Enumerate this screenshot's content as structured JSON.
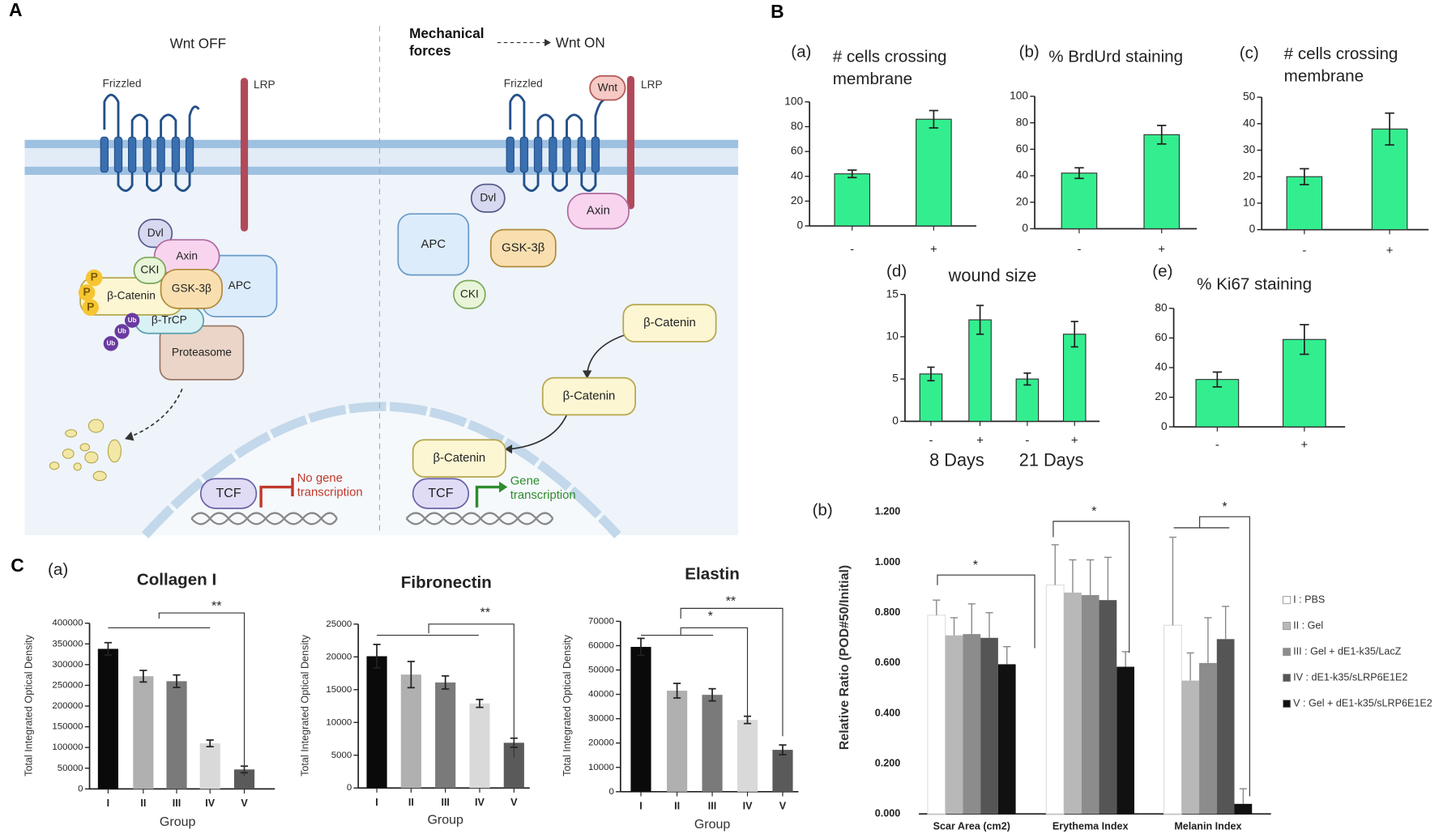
{
  "panel_labels": [
    "A",
    "B",
    "C"
  ],
  "diagram": {
    "nodes": [
      "Wnt OFF",
      "Mechanical",
      "forces",
      "Wnt ON",
      "Frizzled",
      "LRP",
      "Frizzled",
      "Wnt",
      "LRP",
      "Dvl",
      "APC",
      "Axin",
      "Proteasome",
      "β-TrCP",
      "β-Catenin",
      "CKI",
      "GSK-3β",
      "P",
      "P",
      "P",
      "Ub",
      "Ub",
      "Ub",
      "Dvl",
      "Axin",
      "APC",
      "GSK-3β",
      "CKI",
      "β-Catenin",
      "β-Catenin",
      "β-Catenin",
      "TCF",
      "No gene",
      "transcription",
      "TCF",
      "Gene",
      "transcription"
    ]
  },
  "chart_data": [
    {
      "type": "bar",
      "label": "(a)",
      "title": [
        "# cells crossing",
        "membrane"
      ],
      "categories": [
        "-",
        "+"
      ],
      "values": [
        42,
        86
      ],
      "errors": [
        3,
        7
      ],
      "color": "#33ee8f",
      "ylim": [
        0,
        100
      ],
      "yticks": [
        0,
        20,
        40,
        60,
        80,
        100
      ]
    },
    {
      "type": "bar",
      "label": "(b)",
      "title": [
        "% BrdUrd staining"
      ],
      "categories": [
        "-",
        "+"
      ],
      "values": [
        42,
        71
      ],
      "errors": [
        4,
        7
      ],
      "color": "#33ee8f",
      "ylim": [
        0,
        100
      ],
      "yticks": [
        0,
        20,
        40,
        60,
        80,
        100
      ]
    },
    {
      "type": "bar",
      "label": "(c)",
      "title": [
        "# cells crossing",
        "membrane"
      ],
      "categories": [
        "-",
        "+"
      ],
      "values": [
        20,
        38
      ],
      "errors": [
        3,
        6
      ],
      "color": "#33ee8f",
      "ylim": [
        0,
        50
      ],
      "yticks": [
        0,
        10,
        20,
        30,
        40,
        50
      ]
    },
    {
      "type": "bar",
      "label": "(d)",
      "title": [
        "wound size"
      ],
      "categories": [
        "-",
        "+",
        "-",
        "+"
      ],
      "groups": [
        "8 Days",
        "21 Days"
      ],
      "values": [
        5.6,
        12,
        5,
        10.3
      ],
      "errors": [
        0.8,
        1.7,
        0.7,
        1.5
      ],
      "color": "#33ee8f",
      "ylim": [
        0,
        15
      ],
      "yticks": [
        0,
        5,
        10,
        15
      ]
    },
    {
      "type": "bar",
      "label": "(e)",
      "title": [
        "% Ki67 staining"
      ],
      "categories": [
        "-",
        "+"
      ],
      "values": [
        32,
        59
      ],
      "errors": [
        5,
        10
      ],
      "color": "#33ee8f",
      "ylim": [
        0,
        80
      ],
      "yticks": [
        0,
        20,
        40,
        60,
        80
      ]
    },
    {
      "type": "bar",
      "label": "(a)",
      "title": [
        "Collagen I"
      ],
      "ylabel": "Total Integrated Optical Density",
      "xlabel": "Group",
      "categories": [
        "I",
        "II",
        "III",
        "IV",
        "V"
      ],
      "values": [
        338000,
        272000,
        260000,
        110000,
        47000
      ],
      "errors": [
        15000,
        14000,
        15000,
        8000,
        8000
      ],
      "colors": [
        "#0a0a0a",
        "#b0b0b0",
        "#7a7a7a",
        "#d9d9d9",
        "#5a5a5a"
      ],
      "ylim": [
        0,
        400000
      ],
      "yticks": [
        0,
        50000,
        100000,
        150000,
        200000,
        250000,
        300000,
        350000,
        400000
      ],
      "annotations": [
        "**"
      ]
    },
    {
      "type": "bar",
      "title": [
        "Fibronectin"
      ],
      "ylabel": "Total Integrated Optical Density",
      "xlabel": "Group",
      "categories": [
        "I",
        "II",
        "III",
        "IV",
        "V"
      ],
      "values": [
        20100,
        17300,
        16100,
        12900,
        6900
      ],
      "errors": [
        1800,
        2000,
        1000,
        600,
        700
      ],
      "colors": [
        "#0a0a0a",
        "#b0b0b0",
        "#7a7a7a",
        "#d9d9d9",
        "#5a5a5a"
      ],
      "ylim": [
        0,
        25000
      ],
      "yticks": [
        0,
        5000,
        10000,
        15000,
        20000,
        25000
      ],
      "annotations": [
        "**"
      ]
    },
    {
      "type": "bar",
      "title": [
        "Elastin"
      ],
      "ylabel": "Total Integrated Optical Density",
      "xlabel": "Group",
      "categories": [
        "I",
        "II",
        "III",
        "IV",
        "V"
      ],
      "values": [
        59500,
        41500,
        39800,
        29500,
        17200
      ],
      "errors": [
        3500,
        3000,
        2500,
        1500,
        2000
      ],
      "colors": [
        "#0a0a0a",
        "#b0b0b0",
        "#7a7a7a",
        "#d9d9d9",
        "#5a5a5a"
      ],
      "ylim": [
        0,
        70000
      ],
      "yticks": [
        0,
        10000,
        20000,
        30000,
        40000,
        50000,
        60000,
        70000
      ],
      "annotations": [
        "*",
        "**"
      ]
    },
    {
      "type": "grouped_bar",
      "label": "(b)",
      "ylabel": "Relative Ratio (POD#50/Initial)",
      "categories": [
        "Scar Area (cm2)",
        "Erythema Index",
        "Melanin Index"
      ],
      "series": [
        {
          "name": "I : PBS",
          "color": "#ffffff",
          "values": [
            0.79,
            0.91,
            0.75
          ],
          "errors": [
            0.06,
            0.16,
            0.35
          ]
        },
        {
          "name": "II : Gel",
          "color": "#b8b8b8",
          "values": [
            0.71,
            0.88,
            0.53
          ],
          "errors": [
            0.07,
            0.13,
            0.11
          ]
        },
        {
          "name": "III : Gel + dE1-k35/LacZ",
          "color": "#8c8c8c",
          "values": [
            0.715,
            0.87,
            0.6
          ],
          "errors": [
            0.12,
            0.14,
            0.18
          ]
        },
        {
          "name": "IV : dE1-k35/sLRP6E1E2",
          "color": "#555555",
          "values": [
            0.7,
            0.85,
            0.695
          ],
          "errors": [
            0.1,
            0.17,
            0.13
          ]
        },
        {
          "name": "V : Gel + dE1-k35/sLRP6E1E2",
          "color": "#111111",
          "values": [
            0.595,
            0.585,
            0.04
          ],
          "errors": [
            0.07,
            0.06,
            0.06
          ]
        }
      ],
      "ylim": [
        0,
        1.2
      ],
      "yticks": [
        {
          "value": 0,
          "label": "0.000"
        },
        {
          "value": 0.2,
          "label": "0.200"
        },
        {
          "value": 0.4,
          "label": "0.400"
        },
        {
          "value": 0.6,
          "label": "0.600"
        },
        {
          "value": 0.8,
          "label": "0.800"
        },
        {
          "value": 1,
          "label": "1.000"
        },
        {
          "value": 1.2,
          "label": "1.200"
        }
      ],
      "annotations": [
        "*",
        "*",
        "*"
      ]
    }
  ]
}
